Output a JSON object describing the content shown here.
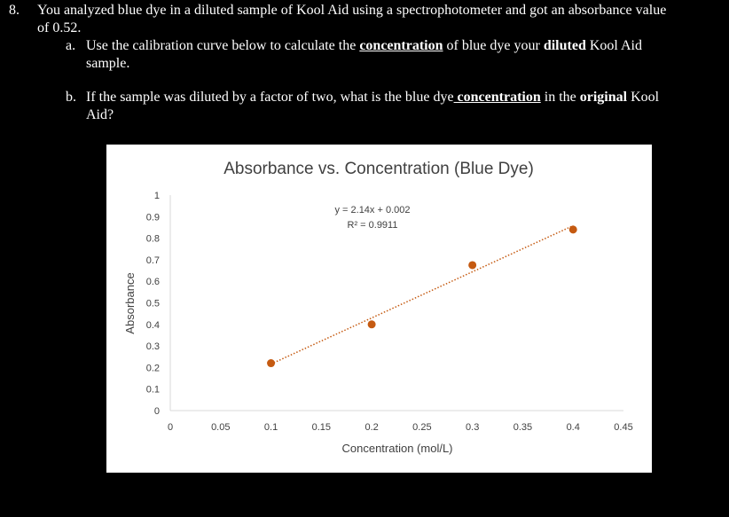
{
  "question": {
    "number": "8.",
    "line1": "You analyzed blue dye in a diluted sample of Kool Aid using a spectrophotometer and got an absorbance value",
    "line2": "of 0.52.",
    "a": {
      "label": "a.",
      "pre": "Use the calibration curve below to calculate the ",
      "u1": "concentration",
      "mid": " of blue dye your ",
      "b1": "diluted",
      "post": " Kool Aid",
      "line2": "sample."
    },
    "b": {
      "label": "b.",
      "pre": "If the sample was diluted by a factor of two, what is the blue dye",
      "u1": " concentration",
      "mid": " in the ",
      "b1": "original",
      "post": " Kool",
      "line2": "Aid?"
    }
  },
  "chart_data": {
    "type": "scatter",
    "title": "Absorbance vs. Concentration (Blue Dye)",
    "xlabel": "Concentration (mol/L)",
    "ylabel": "Absorbance",
    "xlim": [
      0,
      0.45
    ],
    "ylim": [
      0,
      1
    ],
    "xticks": [
      "0",
      "0.05",
      "0.1",
      "0.15",
      "0.2",
      "0.25",
      "0.3",
      "0.35",
      "0.4",
      "0.45"
    ],
    "yticks": [
      "0",
      "0.1",
      "0.2",
      "0.3",
      "0.4",
      "0.5",
      "0.6",
      "0.7",
      "0.8",
      "0.9",
      "1"
    ],
    "x": [
      0.1,
      0.2,
      0.3,
      0.4
    ],
    "y": [
      0.22,
      0.4,
      0.675,
      0.84
    ],
    "trendline": {
      "slope": 2.14,
      "intercept": 0.002,
      "equation": "y = 2.14x + 0.002",
      "r2": "R² = 0.9911"
    },
    "marker_color": "#c55a11",
    "grid": false
  }
}
